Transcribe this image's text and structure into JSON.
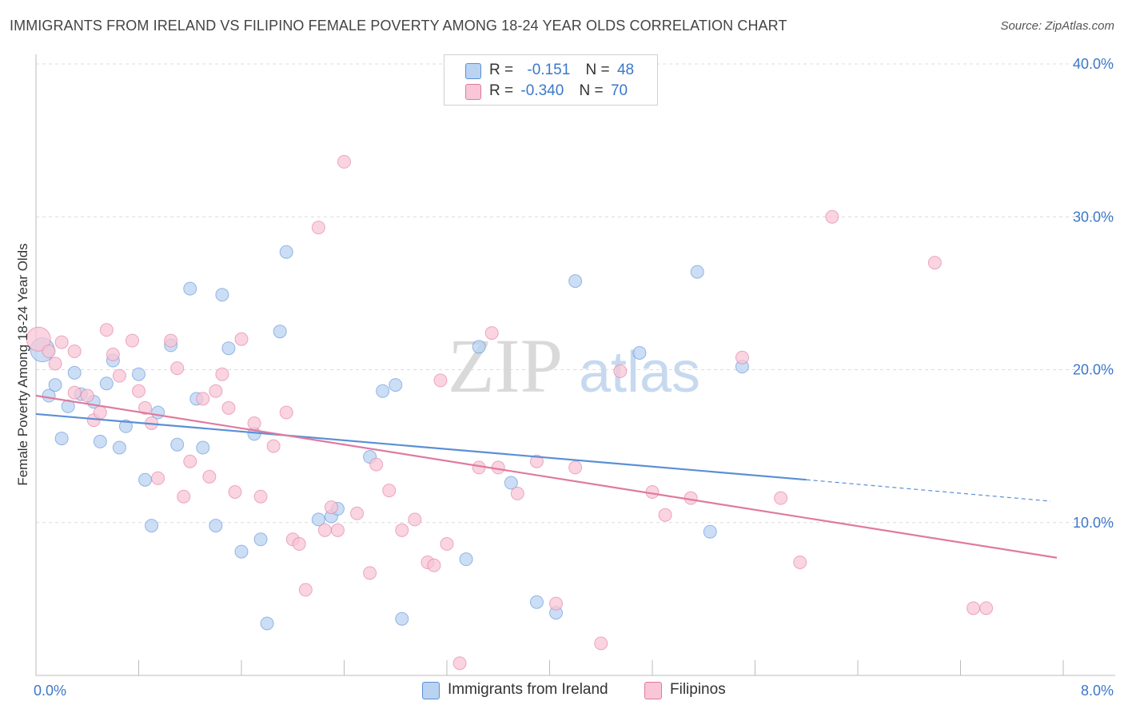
{
  "header": {
    "title": "IMMIGRANTS FROM IRELAND VS FILIPINO FEMALE POVERTY AMONG 18-24 YEAR OLDS CORRELATION CHART",
    "source": "Source: ZipAtlas.com"
  },
  "watermark": {
    "zip": "ZIP",
    "atlas": "atlas"
  },
  "legend": {
    "rows": [
      {
        "r_label": "R =",
        "r_value": "-0.151",
        "n_label": "N =",
        "n_value": "48",
        "color": "#b9d3f1",
        "stroke": "#5b8fd6"
      },
      {
        "r_label": "R =",
        "r_value": "-0.340",
        "n_label": "N =",
        "n_value": "70",
        "color": "#f8c6d6",
        "stroke": "#e07a9e"
      }
    ]
  },
  "bottom_legend": [
    {
      "label": "Immigrants from Ireland",
      "color": "#b9d3f1",
      "stroke": "#5b8fd6"
    },
    {
      "label": "Filipinos",
      "color": "#f8c6d6",
      "stroke": "#e07a9e"
    }
  ],
  "chart_data": {
    "type": "scatter",
    "title": "IMMIGRANTS FROM IRELAND VS FILIPINO FEMALE POVERTY AMONG 18-24 YEAR OLDS CORRELATION CHART",
    "xlabel": "",
    "ylabel": "Female Poverty Among 18-24 Year Olds",
    "xlim": [
      0,
      8
    ],
    "ylim": [
      0,
      40
    ],
    "x_tick_labels": [
      "0.0%",
      "8.0%"
    ],
    "y_ticks": [
      10,
      20,
      30,
      40
    ],
    "y_tick_labels": [
      "10.0%",
      "20.0%",
      "30.0%",
      "40.0%"
    ],
    "grid": true,
    "legend_position": "top-center",
    "series": [
      {
        "name": "Immigrants from Ireland",
        "color": "#5b8fd6",
        "fill": "#b9d3f1",
        "trend": {
          "x": [
            0,
            6.0
          ],
          "y": [
            17.1,
            12.8
          ],
          "dashed_to": [
            7.9,
            11.4
          ]
        },
        "points": [
          [
            0.05,
            21.3
          ],
          [
            0.1,
            18.3
          ],
          [
            0.15,
            19.0
          ],
          [
            0.25,
            17.6
          ],
          [
            0.3,
            19.8
          ],
          [
            0.35,
            18.4
          ],
          [
            0.2,
            15.5
          ],
          [
            0.45,
            17.9
          ],
          [
            0.55,
            19.1
          ],
          [
            0.5,
            15.3
          ],
          [
            0.6,
            20.6
          ],
          [
            0.65,
            14.9
          ],
          [
            0.7,
            16.3
          ],
          [
            0.8,
            19.7
          ],
          [
            0.85,
            12.8
          ],
          [
            0.9,
            9.8
          ],
          [
            0.95,
            17.2
          ],
          [
            1.05,
            21.6
          ],
          [
            1.1,
            15.1
          ],
          [
            1.2,
            25.3
          ],
          [
            1.25,
            18.1
          ],
          [
            1.3,
            14.9
          ],
          [
            1.4,
            9.8
          ],
          [
            1.45,
            24.9
          ],
          [
            1.5,
            21.4
          ],
          [
            1.6,
            8.1
          ],
          [
            1.7,
            15.8
          ],
          [
            1.75,
            8.9
          ],
          [
            1.8,
            3.4
          ],
          [
            1.9,
            22.5
          ],
          [
            1.95,
            27.7
          ],
          [
            2.2,
            10.2
          ],
          [
            2.3,
            10.4
          ],
          [
            2.35,
            10.9
          ],
          [
            2.6,
            14.3
          ],
          [
            2.7,
            18.6
          ],
          [
            2.8,
            19.0
          ],
          [
            2.85,
            3.7
          ],
          [
            3.35,
            7.6
          ],
          [
            3.45,
            21.5
          ],
          [
            3.7,
            12.6
          ],
          [
            3.9,
            4.8
          ],
          [
            4.05,
            4.1
          ],
          [
            4.2,
            25.8
          ],
          [
            4.7,
            21.1
          ],
          [
            5.15,
            26.4
          ],
          [
            5.25,
            9.4
          ],
          [
            5.5,
            20.2
          ]
        ]
      },
      {
        "name": "Filipinos",
        "color": "#e07a9e",
        "fill": "#f8c6d6",
        "trend": {
          "x": [
            0,
            7.95
          ],
          "y": [
            18.3,
            7.7
          ]
        },
        "points": [
          [
            0.02,
            22.0
          ],
          [
            0.1,
            21.2
          ],
          [
            0.2,
            21.8
          ],
          [
            0.15,
            20.4
          ],
          [
            0.3,
            21.2
          ],
          [
            0.3,
            18.5
          ],
          [
            0.4,
            18.3
          ],
          [
            0.45,
            16.7
          ],
          [
            0.5,
            17.2
          ],
          [
            0.55,
            22.6
          ],
          [
            0.6,
            21.0
          ],
          [
            0.65,
            19.6
          ],
          [
            0.75,
            21.9
          ],
          [
            0.8,
            18.6
          ],
          [
            0.85,
            17.5
          ],
          [
            0.9,
            16.5
          ],
          [
            0.95,
            12.9
          ],
          [
            1.05,
            21.9
          ],
          [
            1.1,
            20.1
          ],
          [
            1.15,
            11.7
          ],
          [
            1.2,
            14.0
          ],
          [
            1.3,
            18.1
          ],
          [
            1.35,
            13.0
          ],
          [
            1.4,
            18.6
          ],
          [
            1.45,
            19.7
          ],
          [
            1.5,
            17.5
          ],
          [
            1.55,
            12.0
          ],
          [
            1.6,
            22.0
          ],
          [
            1.7,
            16.5
          ],
          [
            1.75,
            11.7
          ],
          [
            1.85,
            15.0
          ],
          [
            1.95,
            17.2
          ],
          [
            2.0,
            8.9
          ],
          [
            2.05,
            8.6
          ],
          [
            2.1,
            5.6
          ],
          [
            2.2,
            29.3
          ],
          [
            2.25,
            9.5
          ],
          [
            2.3,
            11.0
          ],
          [
            2.35,
            9.5
          ],
          [
            2.4,
            33.6
          ],
          [
            2.5,
            10.6
          ],
          [
            2.6,
            6.7
          ],
          [
            2.65,
            13.8
          ],
          [
            2.75,
            12.1
          ],
          [
            2.85,
            9.5
          ],
          [
            2.95,
            10.2
          ],
          [
            3.05,
            7.4
          ],
          [
            3.1,
            7.2
          ],
          [
            3.15,
            19.3
          ],
          [
            3.2,
            8.6
          ],
          [
            3.3,
            0.8
          ],
          [
            3.45,
            13.6
          ],
          [
            3.55,
            22.4
          ],
          [
            3.6,
            13.6
          ],
          [
            3.75,
            11.9
          ],
          [
            3.9,
            14.0
          ],
          [
            4.05,
            4.7
          ],
          [
            4.2,
            13.6
          ],
          [
            4.4,
            2.1
          ],
          [
            4.55,
            19.9
          ],
          [
            4.8,
            12.0
          ],
          [
            4.9,
            10.5
          ],
          [
            5.1,
            11.6
          ],
          [
            5.5,
            20.8
          ],
          [
            5.8,
            11.6
          ],
          [
            5.95,
            7.4
          ],
          [
            6.2,
            30.0
          ],
          [
            7.0,
            27.0
          ],
          [
            7.3,
            4.4
          ],
          [
            7.4,
            4.4
          ]
        ]
      }
    ]
  }
}
